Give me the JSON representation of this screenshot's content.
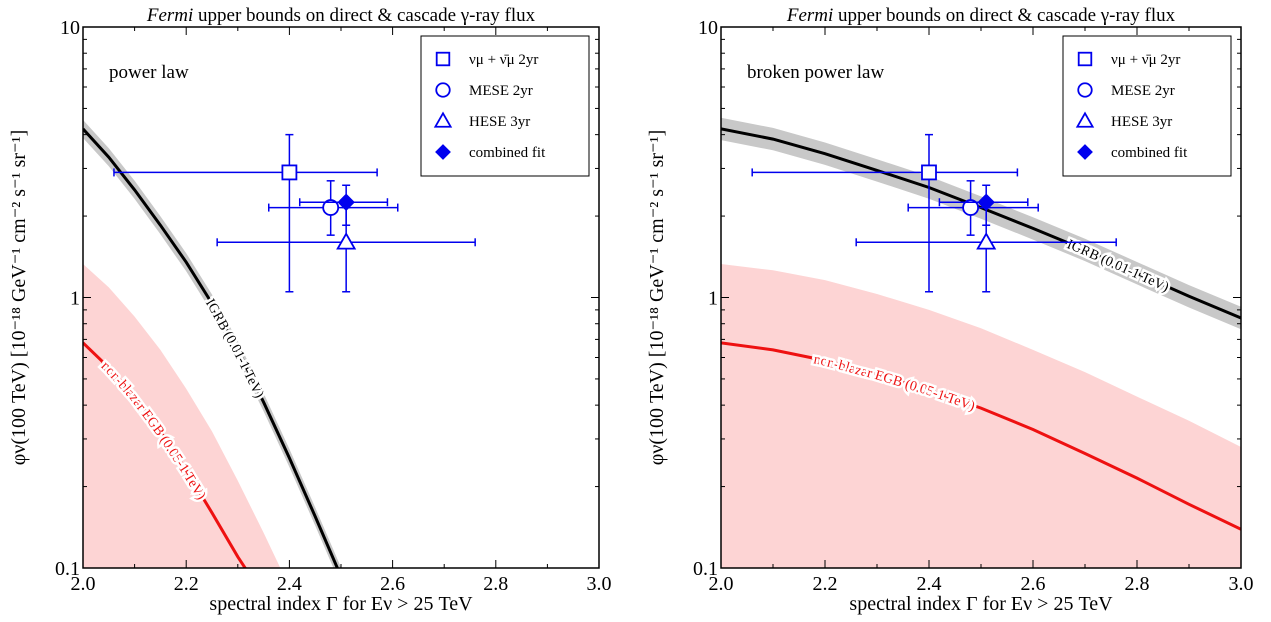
{
  "chart_data": [
    {
      "type": "line",
      "title_italic": "Fermi",
      "title_rest": " upper bounds on direct & cascade γ-ray flux",
      "panel_label": "power law",
      "xlabel": "spectral index Γ for Eν > 25 TeV",
      "ylabel": "φν(100 TeV) [10⁻¹⁸ GeV⁻¹ cm⁻² s⁻¹ sr⁻¹]",
      "xlim": [
        2.0,
        3.0
      ],
      "ylim": [
        0.1,
        10
      ],
      "yscale": "log",
      "x_ticks": [
        "2.0",
        "2.2",
        "2.4",
        "2.6",
        "2.8",
        "3.0"
      ],
      "y_ticks": [
        "0.1",
        "1",
        "10"
      ],
      "legend_position": "top-right",
      "series": [
        {
          "name": "IGRB (0.01-1 TeV)",
          "color": "#000000",
          "band_color": "#c8c8c8",
          "band_factor": 1.08,
          "points": [
            [
              2.0,
              4.2
            ],
            [
              2.05,
              3.3
            ],
            [
              2.1,
              2.5
            ],
            [
              2.15,
              1.85
            ],
            [
              2.2,
              1.35
            ],
            [
              2.25,
              0.95
            ],
            [
              2.3,
              0.64
            ],
            [
              2.35,
              0.41
            ],
            [
              2.4,
              0.255
            ],
            [
              2.45,
              0.155
            ],
            [
              2.5,
              0.093
            ]
          ]
        },
        {
          "name": "non-blazar EGB (0.05-1 TeV)",
          "color": "#ee1111",
          "band_color": "#fdd4d4",
          "band_points": [
            [
              2.0,
              1.33
            ],
            [
              2.05,
              1.09
            ],
            [
              2.1,
              0.85
            ],
            [
              2.15,
              0.64
            ],
            [
              2.2,
              0.46
            ],
            [
              2.25,
              0.32
            ],
            [
              2.3,
              0.21
            ],
            [
              2.35,
              0.135
            ],
            [
              2.4,
              0.085
            ]
          ],
          "points": [
            [
              2.0,
              0.68
            ],
            [
              2.05,
              0.55
            ],
            [
              2.1,
              0.43
            ],
            [
              2.15,
              0.32
            ],
            [
              2.2,
              0.23
            ],
            [
              2.25,
              0.16
            ],
            [
              2.3,
              0.11
            ],
            [
              2.33,
              0.09
            ]
          ]
        }
      ],
      "data_points": [
        {
          "name": "νμ + ν̄μ 2yr",
          "marker": "square",
          "x": 2.4,
          "y": 2.9,
          "x_err": [
            2.06,
            2.57
          ],
          "y_err": [
            1.05,
            4.0
          ]
        },
        {
          "name": "MESE 2yr",
          "marker": "circle",
          "x": 2.48,
          "y": 2.15,
          "x_err": [
            2.36,
            2.61
          ],
          "y_err": [
            1.7,
            2.7
          ]
        },
        {
          "name": "HESE 3yr",
          "marker": "triangle",
          "x": 2.51,
          "y": 1.6,
          "x_err": [
            2.26,
            2.76
          ],
          "y_err": [
            1.05,
            2.15
          ]
        },
        {
          "name": "combined fit",
          "marker": "diamond",
          "x": 2.51,
          "y": 2.25,
          "x_err": [
            2.42,
            2.59
          ],
          "y_err": [
            1.85,
            2.6
          ]
        }
      ]
    },
    {
      "type": "line",
      "title_italic": "Fermi",
      "title_rest": " upper bounds on direct & cascade γ-ray flux",
      "panel_label": "broken power law",
      "xlabel": "spectral index Γ for Eν > 25 TeV",
      "ylabel": "φν(100 TeV) [10⁻¹⁸ GeV⁻¹ cm⁻² s⁻¹ sr⁻¹]",
      "xlim": [
        2.0,
        3.0
      ],
      "ylim": [
        0.1,
        10
      ],
      "yscale": "log",
      "x_ticks": [
        "2.0",
        "2.2",
        "2.4",
        "2.6",
        "2.8",
        "3.0"
      ],
      "y_ticks": [
        "0.1",
        "1",
        "10"
      ],
      "legend_position": "top-right",
      "series": [
        {
          "name": "IGRB (0.01-1 TeV)",
          "color": "#000000",
          "band_color": "#c8c8c8",
          "band_factor": 1.1,
          "points": [
            [
              2.0,
              4.2
            ],
            [
              2.1,
              3.85
            ],
            [
              2.2,
              3.4
            ],
            [
              2.3,
              2.95
            ],
            [
              2.4,
              2.55
            ],
            [
              2.5,
              2.15
            ],
            [
              2.6,
              1.8
            ],
            [
              2.7,
              1.5
            ],
            [
              2.8,
              1.23
            ],
            [
              2.9,
              1.01
            ],
            [
              3.0,
              0.84
            ]
          ]
        },
        {
          "name": "non-blazar EGB (0.05-1 TeV)",
          "color": "#ee1111",
          "band_color": "#fdd4d4",
          "band_points": [
            [
              2.0,
              1.33
            ],
            [
              2.1,
              1.26
            ],
            [
              2.2,
              1.16
            ],
            [
              2.3,
              1.03
            ],
            [
              2.4,
              0.9
            ],
            [
              2.5,
              0.77
            ],
            [
              2.6,
              0.64
            ],
            [
              2.7,
              0.53
            ],
            [
              2.8,
              0.43
            ],
            [
              2.9,
              0.35
            ],
            [
              3.0,
              0.28
            ]
          ],
          "points": [
            [
              2.0,
              0.68
            ],
            [
              2.1,
              0.64
            ],
            [
              2.2,
              0.585
            ],
            [
              2.3,
              0.52
            ],
            [
              2.4,
              0.455
            ],
            [
              2.5,
              0.39
            ],
            [
              2.6,
              0.325
            ],
            [
              2.7,
              0.265
            ],
            [
              2.8,
              0.215
            ],
            [
              2.9,
              0.172
            ],
            [
              3.0,
              0.139
            ]
          ]
        }
      ],
      "data_points": [
        {
          "name": "νμ + ν̄μ 2yr",
          "marker": "square",
          "x": 2.4,
          "y": 2.9,
          "x_err": [
            2.06,
            2.57
          ],
          "y_err": [
            1.05,
            4.0
          ]
        },
        {
          "name": "MESE 2yr",
          "marker": "circle",
          "x": 2.48,
          "y": 2.15,
          "x_err": [
            2.36,
            2.61
          ],
          "y_err": [
            1.7,
            2.7
          ]
        },
        {
          "name": "HESE 3yr",
          "marker": "triangle",
          "x": 2.51,
          "y": 1.6,
          "x_err": [
            2.26,
            2.76
          ],
          "y_err": [
            1.05,
            2.15
          ]
        },
        {
          "name": "combined fit",
          "marker": "diamond",
          "x": 2.51,
          "y": 2.25,
          "x_err": [
            2.42,
            2.59
          ],
          "y_err": [
            1.85,
            2.6
          ]
        }
      ]
    }
  ],
  "colors": {
    "marker": "#0000ee",
    "igrb_line": "#000000",
    "igrb_band": "#c8c8c8",
    "egb_line": "#ee1111",
    "egb_band": "#fdd4d4"
  }
}
